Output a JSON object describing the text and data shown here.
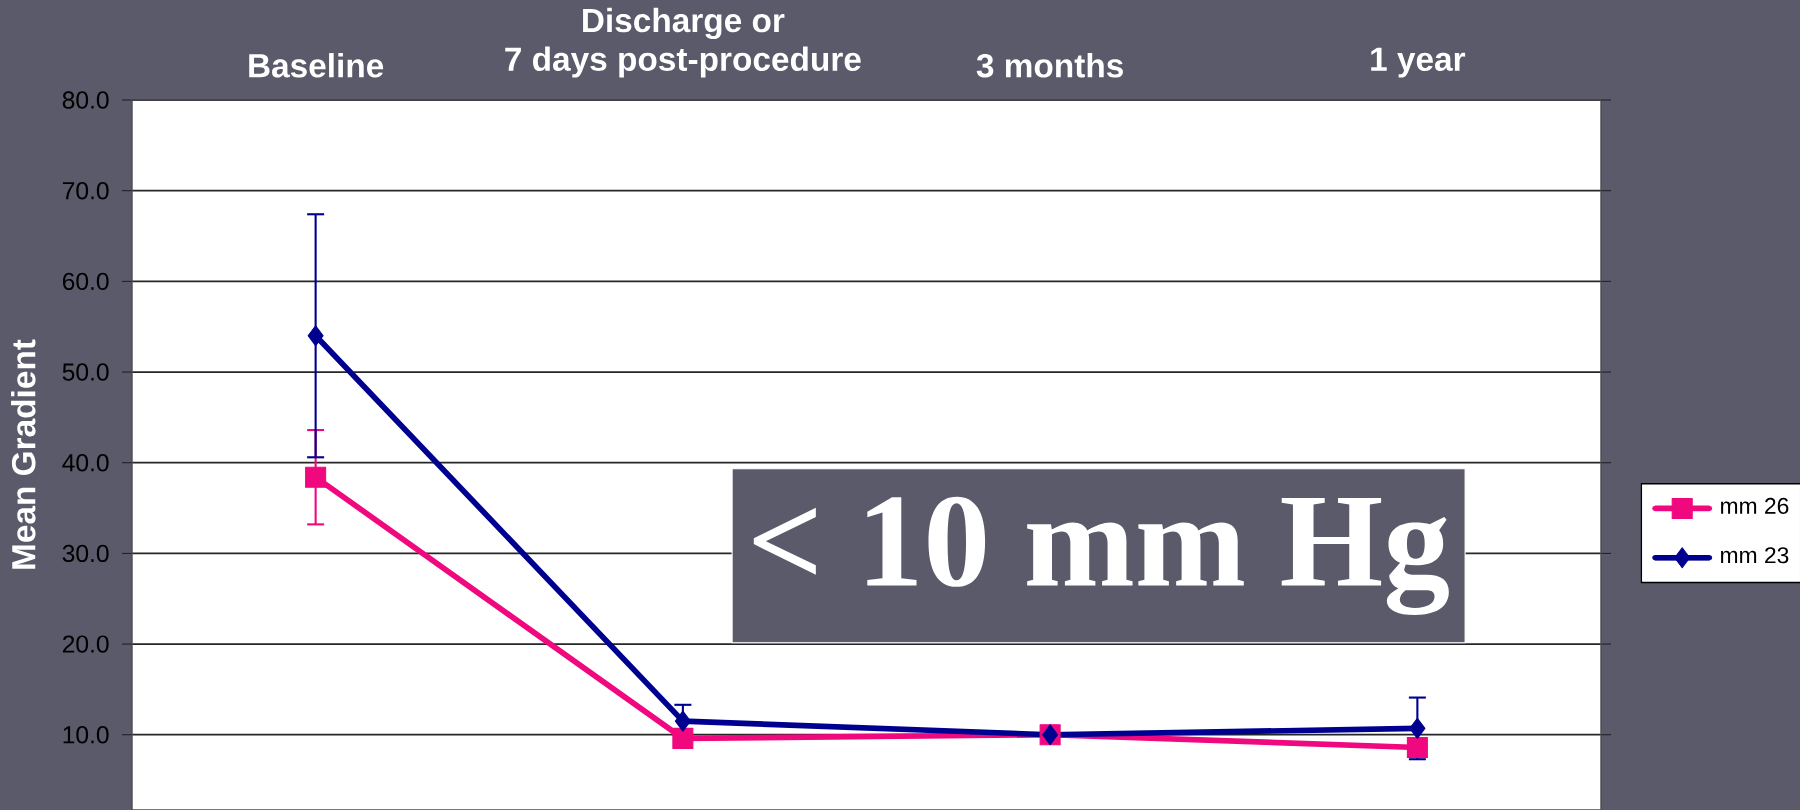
{
  "chart_data": {
    "type": "line",
    "ylabel": "Mean Gradient",
    "categories": [
      "Baseline",
      "Discharge or\n7 days post-procedure",
      "3 months",
      "1 year"
    ],
    "series": [
      {
        "name": "mm 26",
        "color": "#f0087f",
        "marker": "square",
        "values": [
          38.4,
          9.6,
          10.0,
          8.6
        ],
        "errors": [
          5.2,
          null,
          null,
          null
        ]
      },
      {
        "name": "mm 23",
        "color": "#000090",
        "marker": "diamond",
        "values": [
          54.0,
          11.5,
          10.0,
          10.7
        ],
        "errors": [
          13.4,
          1.8,
          null,
          3.4
        ]
      }
    ],
    "ylim": [
      1.7,
      80
    ],
    "yticks": [
      {
        "value": 10,
        "label": "10.0"
      },
      {
        "value": 20,
        "label": "20.0"
      },
      {
        "value": 30,
        "label": "30.0"
      },
      {
        "value": 40,
        "label": "40.0"
      },
      {
        "value": 50,
        "label": "50.0"
      },
      {
        "value": 60,
        "label": "60.0"
      },
      {
        "value": 70,
        "label": "70.0"
      },
      {
        "value": 80,
        "label": "80.0"
      }
    ],
    "grid": "y",
    "legend": "right",
    "line_style": "solid",
    "annotations": [
      "< 10 mm Hg"
    ]
  }
}
